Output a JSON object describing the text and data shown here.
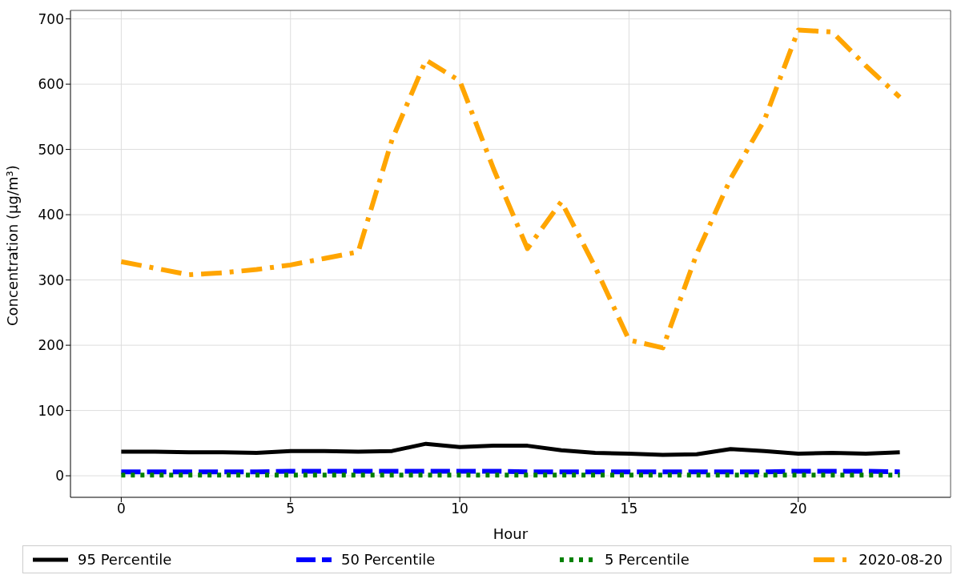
{
  "chart_data": {
    "type": "line",
    "xlabel": "Hour",
    "ylabel": "Concentration (μg/m³)",
    "x": [
      0,
      1,
      2,
      3,
      4,
      5,
      6,
      7,
      8,
      9,
      10,
      11,
      12,
      13,
      14,
      15,
      16,
      17,
      18,
      19,
      20,
      21,
      22,
      23
    ],
    "series": [
      {
        "name": "95 Percentile",
        "color": "#000000",
        "line_style": "solid",
        "values": [
          37,
          37,
          36,
          36,
          35,
          38,
          38,
          37,
          38,
          49,
          44,
          46,
          46,
          39,
          35,
          34,
          32,
          33,
          41,
          38,
          34,
          35,
          34,
          36
        ]
      },
      {
        "name": "50 Percentile",
        "color": "#0000ff",
        "line_style": "dashed",
        "values": [
          6,
          6,
          6,
          6,
          6,
          7,
          7,
          7,
          7,
          7,
          7,
          7,
          6,
          6,
          6,
          6,
          6,
          6,
          6,
          6,
          7,
          7,
          7,
          6
        ]
      },
      {
        "name": "5 Percentile",
        "color": "#008000",
        "line_style": "dotted",
        "values": [
          1,
          1,
          1,
          1,
          1,
          1,
          1,
          1,
          1,
          1,
          1,
          1,
          1,
          1,
          1,
          1,
          1,
          1,
          1,
          1,
          1,
          1,
          1,
          1
        ]
      },
      {
        "name": "2020-08-20",
        "color": "#ffa500",
        "line_style": "dashdot",
        "values": [
          328,
          318,
          308,
          311,
          316,
          323,
          333,
          343,
          515,
          637,
          605,
          470,
          348,
          420,
          320,
          208,
          196,
          340,
          455,
          545,
          683,
          680,
          628,
          580
        ]
      }
    ],
    "xlim": [
      -1.5,
      24.5
    ],
    "xticks": [
      0,
      5,
      10,
      15,
      20
    ],
    "ylim": [
      -33,
      713
    ],
    "yticks": [
      0,
      100,
      200,
      300,
      400,
      500,
      600,
      700
    ],
    "grid": true,
    "legend": "bottom",
    "marker": "none"
  }
}
